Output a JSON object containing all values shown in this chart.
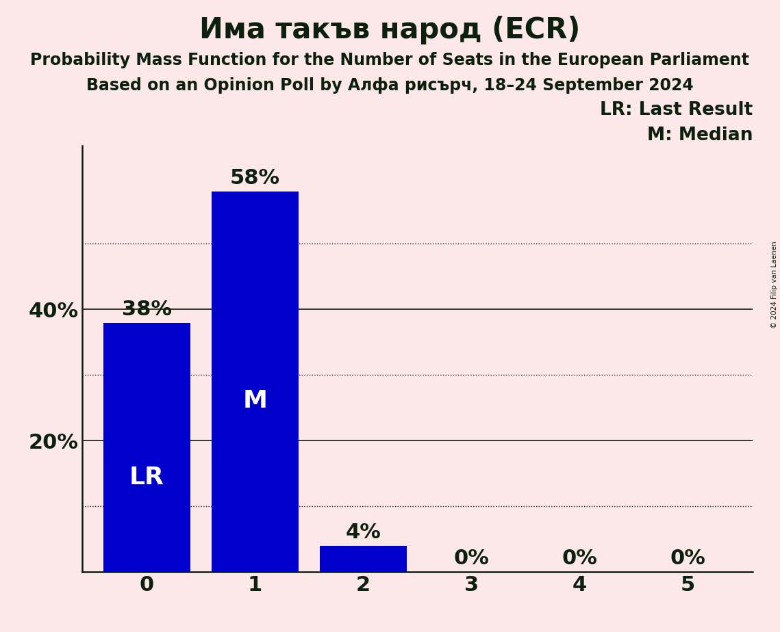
{
  "title": "Има такъв народ (ECR)",
  "subtitle1": "Probability Mass Function for the Number of Seats in the European Parliament",
  "subtitle2": "Based on an Opinion Poll by Алфа рисърч, 18–24 September 2024",
  "copyright": "© 2024 Filip van Laenen",
  "categories": [
    0,
    1,
    2,
    3,
    4,
    5
  ],
  "values": [
    0.38,
    0.58,
    0.04,
    0.0,
    0.0,
    0.0
  ],
  "bar_color": "#0000cc",
  "background_color": "#fce8e8",
  "text_color": "#0d1f0d",
  "label_LR_bar": 0,
  "label_M_bar": 1,
  "ylim": [
    0,
    0.65
  ],
  "yticks": [
    0.0,
    0.2,
    0.4
  ],
  "ytick_labels": [
    "",
    "20%",
    "40%"
  ],
  "solid_gridlines": [
    0.2,
    0.4
  ],
  "dotted_gridlines": [
    0.1,
    0.3,
    0.5
  ],
  "lr_legend": "LR: Last Result",
  "m_legend": "M: Median",
  "title_fontsize": 30,
  "subtitle_fontsize": 17,
  "axis_label_fontsize": 22,
  "bar_label_fontsize": 22,
  "legend_fontsize": 19,
  "inbar_fontsize": 26
}
